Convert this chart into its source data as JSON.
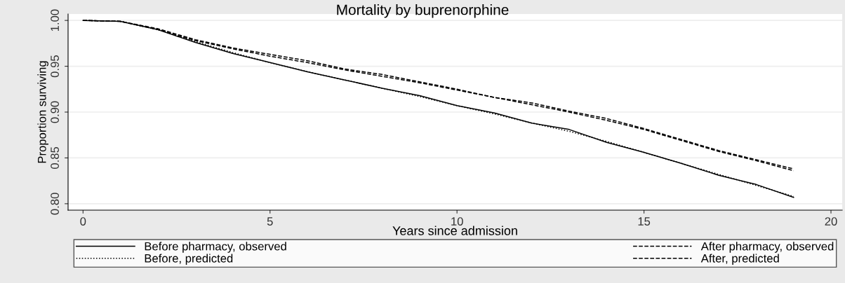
{
  "chart_data": {
    "type": "line",
    "title": "Mortality by buprenorphine",
    "xlabel": "Years since admission",
    "ylabel": "Proportion surviving",
    "x": [
      0,
      1,
      2,
      3,
      4,
      5,
      6,
      7,
      8,
      9,
      10,
      11,
      12,
      13,
      14,
      15,
      16,
      17,
      18,
      19
    ],
    "series": [
      {
        "name": "Before pharmacy, observed",
        "color": "#000000",
        "line_style": "solid",
        "values": [
          1.0,
          0.999,
          0.99,
          0.976,
          0.964,
          0.954,
          0.944,
          0.935,
          0.926,
          0.918,
          0.907,
          0.899,
          0.888,
          0.881,
          0.867,
          0.856,
          0.844,
          0.831,
          0.821,
          0.807
        ]
      },
      {
        "name": "After pharmacy, observed",
        "color": "#000000",
        "line_style": "dashed",
        "values": [
          1.0,
          0.999,
          0.991,
          0.979,
          0.97,
          0.963,
          0.956,
          0.947,
          0.941,
          0.933,
          0.925,
          0.916,
          0.91,
          0.901,
          0.893,
          0.882,
          0.87,
          0.858,
          0.848,
          0.838
        ]
      },
      {
        "name": "Before, predicted",
        "color": "#000000",
        "line_style": "dotted",
        "values": [
          1.0,
          0.999,
          0.99,
          0.977,
          0.965,
          0.954,
          0.944,
          0.935,
          0.926,
          0.917,
          0.907,
          0.898,
          0.888,
          0.879,
          0.868,
          0.856,
          0.844,
          0.832,
          0.82,
          0.808
        ]
      },
      {
        "name": "After, predicted",
        "color": "#000000",
        "line_style": "dashed",
        "values": [
          1.0,
          0.999,
          0.99,
          0.978,
          0.969,
          0.961,
          0.954,
          0.946,
          0.939,
          0.932,
          0.924,
          0.916,
          0.908,
          0.9,
          0.891,
          0.881,
          0.869,
          0.857,
          0.847,
          0.836
        ]
      }
    ],
    "xlim": [
      -0.4,
      20.3
    ],
    "ylim": [
      0.793,
      1.007
    ],
    "xticks": [
      0,
      5,
      10,
      15,
      20
    ],
    "yticks": [
      {
        "value": 0.8,
        "label": "0.80"
      },
      {
        "value": 0.85,
        "label": "0.85"
      },
      {
        "value": 0.9,
        "label": "0.90"
      },
      {
        "value": 0.95,
        "label": "0.95"
      },
      {
        "value": 1.0,
        "label": "1.00"
      }
    ],
    "grid": "y",
    "legend": "bottom",
    "marker": "none"
  }
}
